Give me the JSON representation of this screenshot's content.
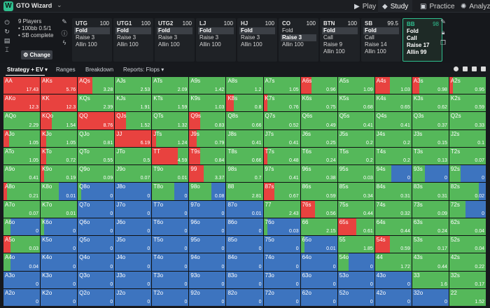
{
  "app": {
    "logo": "W",
    "title": "GTO Wizard",
    "nav": [
      {
        "label": "Play",
        "icon": "play-icon",
        "glyph": "▶",
        "active": false
      },
      {
        "label": "Study",
        "icon": "study-icon",
        "glyph": "◆",
        "active": true
      },
      {
        "label": "Practice",
        "icon": "practice-icon",
        "glyph": "▣",
        "active": false
      },
      {
        "label": "Analyze",
        "icon": "analyze-icon",
        "glyph": "✺",
        "active": false
      }
    ]
  },
  "game": {
    "players": "9 Players",
    "stakes": "100bb 0.5/1",
    "status": "SB complete",
    "change_label": "Change"
  },
  "positions": [
    {
      "name": "UTG",
      "stack": "100",
      "actions": [
        "Fold",
        "Raise 3",
        "Allin 100"
      ],
      "selected": 0
    },
    {
      "name": "UTG1",
      "stack": "100",
      "actions": [
        "Fold",
        "Raise 3",
        "Allin 100"
      ],
      "selected": 0
    },
    {
      "name": "UTG2",
      "stack": "100",
      "actions": [
        "Fold",
        "Raise 3",
        "Allin 100"
      ],
      "selected": 0
    },
    {
      "name": "LJ",
      "stack": "100",
      "actions": [
        "Fold",
        "Raise 3",
        "Allin 100"
      ],
      "selected": 0
    },
    {
      "name": "HJ",
      "stack": "100",
      "actions": [
        "Fold",
        "Raise 3",
        "Allin 100"
      ],
      "selected": 0
    },
    {
      "name": "CO",
      "stack": "100",
      "actions": [
        "Fold",
        "Raise 3",
        "Allin 100"
      ],
      "selected": 1
    },
    {
      "name": "BTN",
      "stack": "100",
      "actions": [
        "Fold",
        "Call",
        "Raise 9",
        "Allin 100"
      ],
      "selected": 0
    },
    {
      "name": "SB",
      "stack": "99.5",
      "actions": [
        "Fold",
        "Call",
        "Raise 14",
        "Allin 100"
      ],
      "selected": 0
    },
    {
      "name": "BB",
      "stack": "98",
      "actions": [
        "Fold",
        "Call",
        "Raise 17",
        "Allin 99"
      ],
      "selected": -1,
      "current": true
    }
  ],
  "tabs": [
    "Strategy + EV",
    "Ranges",
    "Breakdown",
    "Reports: Flops"
  ],
  "colors": {
    "raise": "#e8423f",
    "call": "#55b85a",
    "fold": "#3d74bf"
  },
  "grid": [
    [
      [
        "AA",
        100,
        0,
        "17.43"
      ],
      [
        "AKs",
        100,
        0,
        "5.76"
      ],
      [
        "AQs",
        40,
        60,
        "3.28"
      ],
      [
        "AJs",
        0,
        100,
        "2.53"
      ],
      [
        "ATs",
        0,
        100,
        "2.09"
      ],
      [
        "A9s",
        0,
        100,
        "1.42"
      ],
      [
        "A8s",
        0,
        100,
        "1.2"
      ],
      [
        "A7s",
        0,
        100,
        "1.05"
      ],
      [
        "A6s",
        30,
        70,
        "0.96"
      ],
      [
        "A5s",
        0,
        100,
        "1.09"
      ],
      [
        "A4s",
        40,
        60,
        "1.03"
      ],
      [
        "A3s",
        20,
        80,
        "0.98"
      ],
      [
        "A2s",
        10,
        90,
        "0.95"
      ]
    ],
    [
      [
        "AKo",
        100,
        0,
        "12.3"
      ],
      [
        "KK",
        100,
        0,
        "12.3"
      ],
      [
        "KQs",
        0,
        100,
        "2.39"
      ],
      [
        "KJs",
        0,
        100,
        "1.91"
      ],
      [
        "KTs",
        0,
        100,
        "1.59"
      ],
      [
        "K9s",
        0,
        100,
        "1.03"
      ],
      [
        "K8s",
        20,
        80,
        "0.8"
      ],
      [
        "K7s",
        10,
        90,
        "0.76"
      ],
      [
        "K6s",
        0,
        100,
        "0.75"
      ],
      [
        "K5s",
        0,
        100,
        "0.68"
      ],
      [
        "K4s",
        0,
        100,
        "0.65"
      ],
      [
        "K3s",
        0,
        100,
        "0.62"
      ],
      [
        "K2s",
        0,
        100,
        "0.59"
      ]
    ],
    [
      [
        "AQo",
        0,
        100,
        "2.29"
      ],
      [
        "KQo",
        30,
        70,
        "1.54"
      ],
      [
        "QQ",
        100,
        0,
        "8.76"
      ],
      [
        "QJs",
        30,
        70,
        "1.52"
      ],
      [
        "QTs",
        0,
        100,
        "1.32"
      ],
      [
        "Q9s",
        30,
        70,
        "0.83"
      ],
      [
        "Q8s",
        0,
        100,
        "0.66"
      ],
      [
        "Q7s",
        0,
        100,
        "0.52"
      ],
      [
        "Q6s",
        0,
        100,
        "0.49"
      ],
      [
        "Q5s",
        0,
        100,
        "0.41"
      ],
      [
        "Q4s",
        0,
        100,
        "0.41"
      ],
      [
        "Q3s",
        0,
        100,
        "0.37"
      ],
      [
        "Q2s",
        0,
        100,
        "0.33"
      ]
    ],
    [
      [
        "AJo",
        15,
        85,
        "1.05"
      ],
      [
        "KJo",
        15,
        85,
        "1.05"
      ],
      [
        "QJo",
        0,
        100,
        "0.81"
      ],
      [
        "JJ",
        100,
        0,
        "6.19"
      ],
      [
        "JTs",
        10,
        90,
        "1.24"
      ],
      [
        "J9s",
        20,
        80,
        "0.79"
      ],
      [
        "J8s",
        0,
        100,
        "0.41"
      ],
      [
        "J7s",
        0,
        100,
        "0.41"
      ],
      [
        "J6s",
        0,
        100,
        "0.25"
      ],
      [
        "J5s",
        0,
        100,
        "0.2"
      ],
      [
        "J4s",
        0,
        100,
        "0.2"
      ],
      [
        "J3s",
        0,
        100,
        "0.15"
      ],
      [
        "J2s",
        0,
        100,
        "0.1"
      ]
    ],
    [
      [
        "ATo",
        0,
        100,
        "1.05"
      ],
      [
        "KTo",
        15,
        85,
        "0.72"
      ],
      [
        "QTo",
        0,
        100,
        "0.55"
      ],
      [
        "JTo",
        0,
        100,
        "0.5"
      ],
      [
        "TT",
        70,
        30,
        "4.59"
      ],
      [
        "T9s",
        30,
        70,
        "0.84"
      ],
      [
        "T8s",
        0,
        100,
        "0.66"
      ],
      [
        "T7s",
        10,
        90,
        "0.48"
      ],
      [
        "T6s",
        0,
        100,
        "0.24"
      ],
      [
        "T5s",
        0,
        100,
        "0.2"
      ],
      [
        "T4s",
        0,
        100,
        "0.2"
      ],
      [
        "T3s",
        0,
        100,
        "0.13"
      ],
      [
        "T2s",
        0,
        100,
        "0.07"
      ]
    ],
    [
      [
        "A9o",
        0,
        100,
        "0.41"
      ],
      [
        "K9o",
        10,
        90,
        "0.19"
      ],
      [
        "Q9o",
        0,
        100,
        "0.09"
      ],
      [
        "J9o",
        0,
        100,
        "0.07"
      ],
      [
        "T9o",
        0,
        100,
        "0.01"
      ],
      [
        "99",
        40,
        60,
        "3.37"
      ],
      [
        "98s",
        0,
        100,
        "0.7"
      ],
      [
        "97s",
        0,
        100,
        "0.41"
      ],
      [
        "96s",
        0,
        100,
        "0.38"
      ],
      [
        "95s",
        0,
        100,
        "0.03"
      ],
      [
        "94s",
        0,
        45,
        "0"
      ],
      [
        "93s",
        0,
        35,
        "0"
      ],
      [
        "92s",
        0,
        30,
        "0"
      ]
    ],
    [
      [
        "A8o",
        10,
        90,
        "0.21"
      ],
      [
        "K8o",
        0,
        50,
        "0.01"
      ],
      [
        "Q8o",
        0,
        10,
        "0"
      ],
      [
        "J8o",
        0,
        0,
        "0"
      ],
      [
        "T8o",
        0,
        60,
        "0"
      ],
      [
        "98o",
        0,
        60,
        "0.08"
      ],
      [
        "88",
        0,
        100,
        "2.81"
      ],
      [
        "87s",
        30,
        70,
        "0.67"
      ],
      [
        "86s",
        0,
        100,
        "0.59"
      ],
      [
        "85s",
        0,
        100,
        "0.34"
      ],
      [
        "84s",
        0,
        100,
        "0.31"
      ],
      [
        "83s",
        0,
        100,
        "0.31"
      ],
      [
        "82s",
        0,
        80,
        "0.02"
      ]
    ],
    [
      [
        "A7o",
        0,
        100,
        "0.07"
      ],
      [
        "K7o",
        0,
        100,
        "0.01"
      ],
      [
        "Q7o",
        0,
        0,
        "0"
      ],
      [
        "J7o",
        0,
        0,
        "0"
      ],
      [
        "T7o",
        0,
        0,
        "0"
      ],
      [
        "97o",
        0,
        0,
        "0"
      ],
      [
        "87o",
        0,
        0,
        "0.01"
      ],
      [
        "77",
        0,
        100,
        "2.43"
      ],
      [
        "76s",
        40,
        60,
        "0.56"
      ],
      [
        "75s",
        0,
        100,
        "0.44"
      ],
      [
        "74s",
        0,
        100,
        "0.32"
      ],
      [
        "73s",
        0,
        100,
        "0.09"
      ],
      [
        "72s",
        0,
        45,
        "0"
      ]
    ],
    [
      [
        "A6o",
        0,
        20,
        "0"
      ],
      [
        "K6o",
        0,
        10,
        "0"
      ],
      [
        "Q6o",
        0,
        0,
        "0"
      ],
      [
        "J6o",
        0,
        0,
        "0"
      ],
      [
        "T6o",
        0,
        0,
        "0"
      ],
      [
        "96o",
        0,
        0,
        "0"
      ],
      [
        "86o",
        0,
        0,
        "0"
      ],
      [
        "76o",
        0,
        10,
        "0.03"
      ],
      [
        "66",
        0,
        100,
        "2.15"
      ],
      [
        "65s",
        50,
        50,
        "0.61"
      ],
      [
        "64s",
        0,
        100,
        "0.44"
      ],
      [
        "63s",
        0,
        100,
        "0.24"
      ],
      [
        "62s",
        0,
        100,
        "0.04"
      ]
    ],
    [
      [
        "A5o",
        20,
        80,
        "0.03"
      ],
      [
        "K5o",
        0,
        0,
        "0"
      ],
      [
        "Q5o",
        0,
        0,
        "0"
      ],
      [
        "J5o",
        0,
        0,
        "0"
      ],
      [
        "T5o",
        0,
        0,
        "0"
      ],
      [
        "95o",
        0,
        0,
        "0"
      ],
      [
        "85o",
        0,
        0,
        "0"
      ],
      [
        "75o",
        0,
        0,
        "0"
      ],
      [
        "65o",
        0,
        10,
        "0.01"
      ],
      [
        "55",
        0,
        100,
        "1.85"
      ],
      [
        "54s",
        40,
        60,
        "0.59"
      ],
      [
        "53s",
        0,
        100,
        "0.17"
      ],
      [
        "52s",
        0,
        100,
        "0.04"
      ]
    ],
    [
      [
        "A4o",
        0,
        20,
        "0.04"
      ],
      [
        "K4o",
        0,
        0,
        "0"
      ],
      [
        "Q4o",
        0,
        0,
        "0"
      ],
      [
        "J4o",
        0,
        0,
        "0"
      ],
      [
        "T4o",
        0,
        0,
        "0"
      ],
      [
        "94o",
        0,
        0,
        "0"
      ],
      [
        "84o",
        0,
        0,
        "0"
      ],
      [
        "74o",
        0,
        0,
        "0"
      ],
      [
        "64o",
        0,
        0,
        "0"
      ],
      [
        "54o",
        0,
        30,
        "0"
      ],
      [
        "44",
        0,
        100,
        "1.72"
      ],
      [
        "43s",
        0,
        100,
        "0.44"
      ],
      [
        "42s",
        0,
        100,
        "0.22"
      ]
    ],
    [
      [
        "A3o",
        0,
        0,
        "0"
      ],
      [
        "K3o",
        0,
        0,
        "0"
      ],
      [
        "Q3o",
        0,
        0,
        "0"
      ],
      [
        "J3o",
        0,
        0,
        "0"
      ],
      [
        "T3o",
        0,
        0,
        "0"
      ],
      [
        "93o",
        0,
        0,
        "0"
      ],
      [
        "83o",
        0,
        0,
        "0"
      ],
      [
        "73o",
        0,
        0,
        "0"
      ],
      [
        "63o",
        0,
        0,
        "0"
      ],
      [
        "53o",
        0,
        0,
        "0"
      ],
      [
        "43o",
        0,
        0,
        "0"
      ],
      [
        "33",
        0,
        100,
        "1.6"
      ],
      [
        "32s",
        0,
        100,
        "0.17"
      ]
    ],
    [
      [
        "A2o",
        0,
        0,
        "0"
      ],
      [
        "K2o",
        0,
        0,
        "0"
      ],
      [
        "Q2o",
        0,
        0,
        "0"
      ],
      [
        "J2o",
        0,
        0,
        "0"
      ],
      [
        "T2o",
        0,
        0,
        "0"
      ],
      [
        "92o",
        0,
        0,
        "0"
      ],
      [
        "82o",
        0,
        0,
        "0"
      ],
      [
        "72o",
        0,
        0,
        "0"
      ],
      [
        "62o",
        0,
        0,
        "0"
      ],
      [
        "52o",
        0,
        0,
        "0"
      ],
      [
        "42o",
        0,
        0,
        "0"
      ],
      [
        "32o",
        0,
        0,
        "0"
      ],
      [
        "22",
        0,
        100,
        "1.52"
      ]
    ]
  ]
}
